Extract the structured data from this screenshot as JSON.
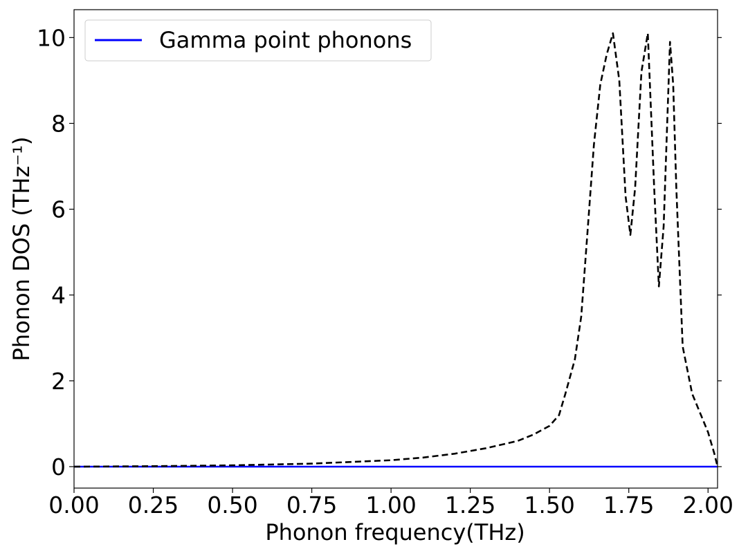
{
  "chart_data": {
    "type": "line",
    "title": "",
    "xlabel": "Phonon frequency(THz)",
    "ylabel": "Phonon DOS (THz⁻¹)",
    "xlim": [
      0.0,
      2.03
    ],
    "ylim": [
      -0.5,
      10.65
    ],
    "xticks": [
      0.0,
      0.25,
      0.5,
      0.75,
      1.0,
      1.25,
      1.5,
      1.75,
      2.0
    ],
    "xtick_labels": [
      "0.00",
      "0.25",
      "0.50",
      "0.75",
      "1.00",
      "1.25",
      "1.50",
      "1.75",
      "2.00"
    ],
    "yticks": [
      0,
      2,
      4,
      6,
      8,
      10
    ],
    "ytick_labels": [
      "0",
      "2",
      "4",
      "6",
      "8",
      "10"
    ],
    "grid": false,
    "legend_position": "top-left",
    "series": [
      {
        "name": "Gamma point phonons",
        "color": "#0000ff",
        "style": "solid",
        "x": [
          0.0,
          2.03
        ],
        "y": [
          0.0,
          0.0
        ]
      },
      {
        "name": "",
        "color": "#000000",
        "style": "dashed",
        "x": [
          0.0,
          0.25,
          0.5,
          0.75,
          1.0,
          1.1,
          1.2,
          1.3,
          1.4,
          1.45,
          1.5,
          1.53,
          1.55,
          1.58,
          1.6,
          1.62,
          1.64,
          1.66,
          1.68,
          1.7,
          1.72,
          1.74,
          1.755,
          1.77,
          1.79,
          1.81,
          1.83,
          1.845,
          1.86,
          1.88,
          1.89,
          1.9,
          1.92,
          1.95,
          2.0,
          2.02,
          2.03
        ],
        "y": [
          0.0,
          0.01,
          0.03,
          0.07,
          0.15,
          0.21,
          0.3,
          0.43,
          0.6,
          0.75,
          0.95,
          1.2,
          1.7,
          2.5,
          3.5,
          5.5,
          7.5,
          8.9,
          9.6,
          10.1,
          9.0,
          6.3,
          5.4,
          6.5,
          9.2,
          10.1,
          6.5,
          4.2,
          5.6,
          9.9,
          8.9,
          6.5,
          2.8,
          1.7,
          0.8,
          0.3,
          0.0
        ]
      }
    ]
  }
}
